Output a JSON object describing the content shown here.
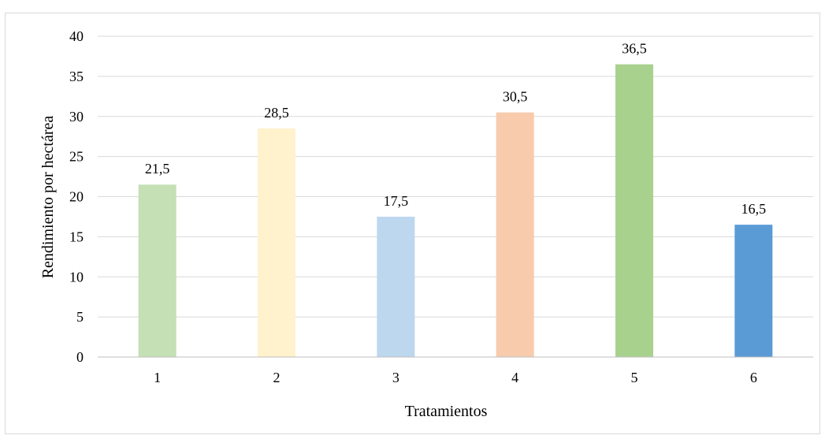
{
  "chart_data": {
    "type": "bar",
    "categories": [
      "1",
      "2",
      "3",
      "4",
      "5",
      "6"
    ],
    "values": [
      21.5,
      28.5,
      17.5,
      30.5,
      36.5,
      16.5
    ],
    "value_labels": [
      "21,5",
      "28,5",
      "17,5",
      "30,5",
      "36,5",
      "16,5"
    ],
    "colors": [
      "#c5e0b4",
      "#fff2cc",
      "#bdd7ee",
      "#f8cbad",
      "#a9d18e",
      "#5b9bd5"
    ],
    "ylim": [
      0,
      40
    ],
    "yticks": [
      "0",
      "5",
      "10",
      "15",
      "20",
      "25",
      "30",
      "35",
      "40"
    ],
    "ytick_values": [
      0,
      5,
      10,
      15,
      20,
      25,
      30,
      35,
      40
    ],
    "xlabel": "Tratamientos",
    "ylabel": "Rendimiento por hectárea",
    "grid": true,
    "gridline_color": "#d9d9d9",
    "axis_color": "#bfbfbf"
  }
}
